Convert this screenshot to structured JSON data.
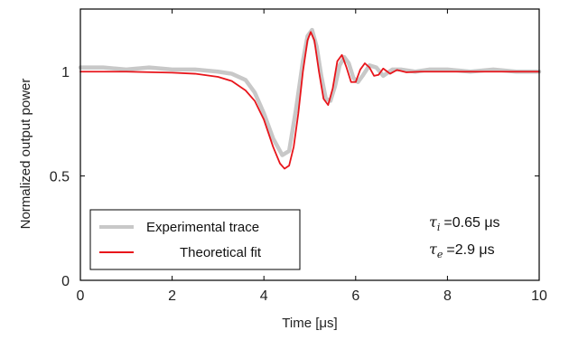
{
  "chart_data": {
    "type": "line",
    "xlabel": "Time [μs]",
    "ylabel": "Normalized output power",
    "xlim": [
      0,
      10
    ],
    "ylim": [
      0,
      1.3
    ],
    "x_ticks": [
      0,
      2,
      4,
      6,
      8,
      10
    ],
    "x_tick_labels": [
      "0",
      "2",
      "4",
      "6",
      "8",
      "10"
    ],
    "y_ticks": [
      0,
      0.5,
      1
    ],
    "y_tick_labels": [
      "0",
      "0.5",
      "1"
    ],
    "grid": false,
    "legend_position": "bottom-left",
    "series": [
      {
        "name": "Experimental trace",
        "color": "#c8c8c8",
        "x": [
          0,
          0.5,
          1,
          1.5,
          2,
          2.5,
          3,
          3.3,
          3.6,
          3.8,
          4.0,
          4.2,
          4.4,
          4.55,
          4.7,
          4.85,
          4.95,
          5.05,
          5.15,
          5.25,
          5.35,
          5.45,
          5.55,
          5.65,
          5.75,
          5.85,
          5.95,
          6.05,
          6.15,
          6.3,
          6.45,
          6.6,
          6.8,
          7.0,
          7.3,
          7.6,
          8.0,
          8.5,
          9.0,
          9.5,
          10
        ],
        "y": [
          1.02,
          1.02,
          1.01,
          1.02,
          1.01,
          1.01,
          1.0,
          0.99,
          0.96,
          0.9,
          0.8,
          0.68,
          0.6,
          0.62,
          0.82,
          1.05,
          1.17,
          1.2,
          1.12,
          0.98,
          0.87,
          0.86,
          0.93,
          1.03,
          1.07,
          1.04,
          0.97,
          0.95,
          0.98,
          1.03,
          1.02,
          0.98,
          1.01,
          1.01,
          1.0,
          1.01,
          1.01,
          1.0,
          1.01,
          1.0,
          1.0
        ]
      },
      {
        "name": "Theoretical fit",
        "color": "#e8151b",
        "x": [
          0,
          1,
          2,
          2.5,
          3,
          3.3,
          3.6,
          3.8,
          4.0,
          4.2,
          4.35,
          4.45,
          4.55,
          4.65,
          4.75,
          4.85,
          4.95,
          5.02,
          5.1,
          5.2,
          5.3,
          5.4,
          5.5,
          5.6,
          5.7,
          5.8,
          5.9,
          6.0,
          6.1,
          6.2,
          6.3,
          6.4,
          6.5,
          6.6,
          6.75,
          6.9,
          7.1,
          7.4,
          8,
          9,
          10
        ],
        "y": [
          1.0,
          1.0,
          0.995,
          0.99,
          0.975,
          0.955,
          0.91,
          0.86,
          0.77,
          0.64,
          0.56,
          0.535,
          0.55,
          0.64,
          0.8,
          1.0,
          1.15,
          1.19,
          1.15,
          1.0,
          0.87,
          0.84,
          0.92,
          1.05,
          1.08,
          1.02,
          0.95,
          0.95,
          1.01,
          1.04,
          1.02,
          0.98,
          0.985,
          1.015,
          0.99,
          1.008,
          0.997,
          1.0,
          1.0,
          1.0,
          1.0
        ]
      }
    ],
    "annotations": [
      {
        "symbol": "τ",
        "subscript": "i",
        "value": "=0.65 μs"
      },
      {
        "symbol": "τ",
        "subscript": "e",
        "value": "=2.9 μs"
      }
    ]
  }
}
